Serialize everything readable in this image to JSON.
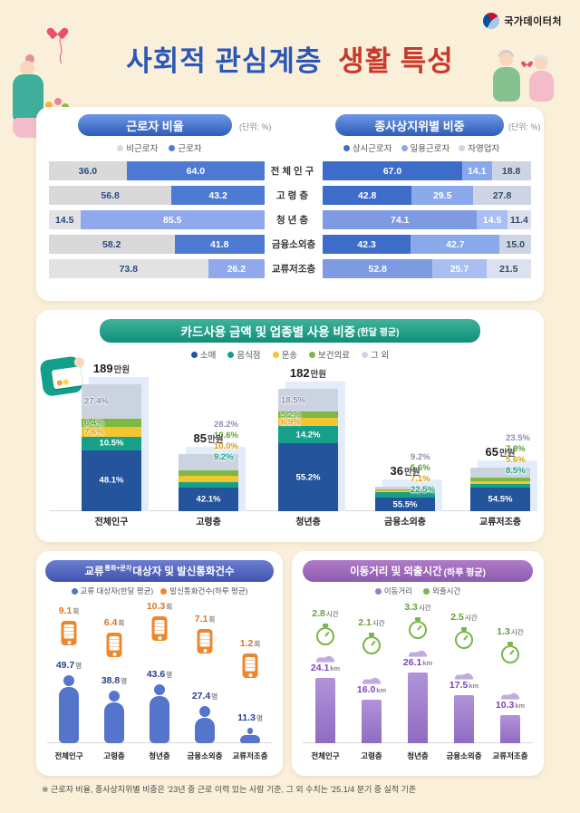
{
  "page": {
    "logo_text": "국가데이터처",
    "title": {
      "part1": "사회적 관심계층",
      "part2": "생활 특성"
    },
    "footnote": "※ 근로자 비율, 종사상지위별 비중은 '23년 중 근로 이력 있는 사람 기준, 그 외 수치는 '25.1/4 분기 중 실적 기준",
    "colors": {
      "background": "#faf0da",
      "title_blue": "#2b57b8",
      "title_red": "#c9392b"
    }
  },
  "categories": [
    "전체인구",
    "고령층",
    "청년층",
    "금융소외층",
    "교류저조층"
  ],
  "chart_data": [
    {
      "id": "worker_ratio",
      "type": "bar",
      "subtype": "stacked-horizontal",
      "title": "근로자 비율",
      "unit": "(단위: %)",
      "xlim": [
        0,
        100
      ],
      "categories": [
        "전체인구",
        "고령층",
        "청년층",
        "금융소외층",
        "교류저조층"
      ],
      "light_rows": [
        2,
        4
      ],
      "series": [
        {
          "name": "비근로자",
          "values": [
            36.0,
            56.8,
            14.5,
            58.2,
            73.8
          ],
          "color": "#d9d9d9",
          "color_light": "#e2e2e2",
          "text_color": "#2b4a8b"
        },
        {
          "name": "근로자",
          "values": [
            64.0,
            43.2,
            85.5,
            41.8,
            26.2
          ],
          "color": "#4d7bd4",
          "color_light": "#8fa9ec",
          "text_color": "#ffffff"
        }
      ]
    },
    {
      "id": "employment_status",
      "type": "bar",
      "subtype": "stacked-horizontal",
      "title": "종사상지위별 비중",
      "unit": "(단위: %)",
      "xlim": [
        0,
        100
      ],
      "categories": [
        "전체인구",
        "고령층",
        "청년층",
        "금융소외층",
        "교류저조층"
      ],
      "light_rows": [
        2,
        4
      ],
      "series": [
        {
          "name": "상시근로자",
          "values": [
            67.0,
            42.8,
            74.1,
            42.3,
            52.8
          ],
          "color": "#3e6cc9",
          "color_light": "#7d9ae2",
          "text_color": "#ffffff"
        },
        {
          "name": "일용근로자",
          "values": [
            14.1,
            29.5,
            14.5,
            42.7,
            25.7
          ],
          "color": "#8aa9eb",
          "color_light": "#a9bff1",
          "text_color": "#ffffff"
        },
        {
          "name": "자영업자",
          "values": [
            18.8,
            27.8,
            11.4,
            15.0,
            21.5
          ],
          "color": "#cdd4e3",
          "color_light": "#dbe1ee",
          "text_color": "#3a4a66"
        }
      ]
    },
    {
      "id": "card_usage",
      "type": "bar",
      "subtype": "stacked-vertical",
      "title": "카드사용 금액 및 업종별 사용 비중",
      "title_sub": "(한달 평균)",
      "amount_unit": "만원",
      "categories": [
        "전체인구",
        "고령층",
        "청년층",
        "금융소외층",
        "교류저조층"
      ],
      "amounts": [
        189,
        85,
        182,
        36,
        65
      ],
      "series": [
        {
          "name": "소매",
          "values": [
            48.1,
            42.1,
            55.2,
            55.5,
            54.5
          ],
          "color": "#24549c",
          "label_color": "#ffffff"
        },
        {
          "name": "음식점",
          "values": [
            10.5,
            9.2,
            14.2,
            22.5,
            8.5
          ],
          "color": "#16a089",
          "label_color": "#16a089"
        },
        {
          "name": "운송",
          "values": [
            7.6,
            10.0,
            6.9,
            7.1,
            5.6
          ],
          "color": "#f3c531",
          "label_color": "#d9a013"
        },
        {
          "name": "보건의료",
          "values": [
            6.4,
            10.6,
            5.2,
            5.6,
            7.8
          ],
          "color": "#7cb942",
          "label_color": "#5f9e32"
        },
        {
          "name": "그 외",
          "values": [
            27.4,
            28.2,
            18.5,
            9.2,
            23.5
          ],
          "color": "#ccd3e0",
          "label_color": "#8a93a6"
        }
      ]
    },
    {
      "id": "communication",
      "type": "pictograph",
      "title_prefix": "교류",
      "title_sup": "통화+문자",
      "title_suffix": " 대상자 및 발신통화건수",
      "legend": [
        {
          "label": "교류 대상자(한달 평균)",
          "color": "#5574cb"
        },
        {
          "label": "발신통화건수(하루 평균)",
          "color": "#f0862b"
        }
      ],
      "categories": [
        "전체인구",
        "고령층",
        "청년층",
        "금융소외층",
        "교류저조층"
      ],
      "series": [
        {
          "name": "교류 대상자",
          "unit": "명",
          "values": [
            49.7,
            38.8,
            43.6,
            27.4,
            11.3
          ],
          "color": "#5574cb",
          "value_color": "#2b3f8c"
        },
        {
          "name": "발신통화건수",
          "unit": "회",
          "values": [
            9.1,
            6.4,
            10.3,
            7.1,
            1.2
          ],
          "color": "#f0862b",
          "value_color": "#e2751a"
        }
      ]
    },
    {
      "id": "mobility",
      "type": "bar",
      "subtype": "icon-bar",
      "title": "이동거리 및 외출시간",
      "title_sub": "(하루 평균)",
      "legend": [
        {
          "label": "이동거리",
          "color": "#9b7cc9"
        },
        {
          "label": "외출시간",
          "color": "#7ab648"
        }
      ],
      "categories": [
        "전체인구",
        "고령층",
        "청년층",
        "금융소외층",
        "교류저조층"
      ],
      "series": [
        {
          "name": "이동거리",
          "unit": "km",
          "values": [
            24.1,
            16.0,
            26.1,
            17.5,
            10.3
          ],
          "color": "#9b7cc9",
          "value_color": "#7d45b5"
        },
        {
          "name": "외출시간",
          "unit": "시간",
          "values": [
            2.8,
            2.1,
            3.3,
            2.5,
            1.3
          ],
          "color": "#7ab648",
          "value_color": "#669f3a"
        }
      ]
    }
  ]
}
